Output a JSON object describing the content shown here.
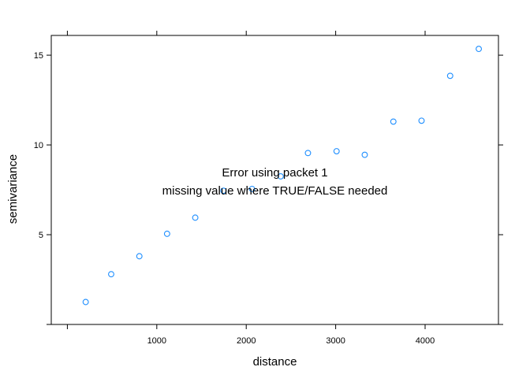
{
  "chart_data": {
    "type": "scatter",
    "xlabel": "distance",
    "ylabel": "semivariance",
    "xlim": [
      -180,
      4820
    ],
    "ylim": [
      0,
      16.1
    ],
    "x_ticks": [
      1000,
      2000,
      3000,
      4000
    ],
    "x_tick_labels": [
      "1000",
      "2000",
      "3000",
      "4000"
    ],
    "x_top_ticks": [
      0,
      1000,
      2000,
      3000,
      4000
    ],
    "y_ticks": [
      5,
      10,
      15
    ],
    "y_tick_labels": [
      "5",
      "10",
      "15"
    ],
    "y_right_ticks": [
      0,
      5,
      10,
      15
    ],
    "grid": false,
    "point_color": "#1f8fff",
    "series": [
      {
        "x": [
          205,
          490,
          805,
          1115,
          1430,
          1745,
          2065,
          2385,
          2690,
          3010,
          3325,
          3645,
          3960,
          4280,
          4600
        ],
        "y": [
          1.25,
          2.8,
          3.8,
          5.05,
          5.95,
          7.45,
          7.55,
          8.25,
          9.55,
          9.65,
          9.45,
          11.3,
          11.35,
          13.85,
          15.35
        ]
      }
    ],
    "annotations": [
      "Error using packet 1",
      "missing value where TRUE/FALSE needed"
    ]
  }
}
